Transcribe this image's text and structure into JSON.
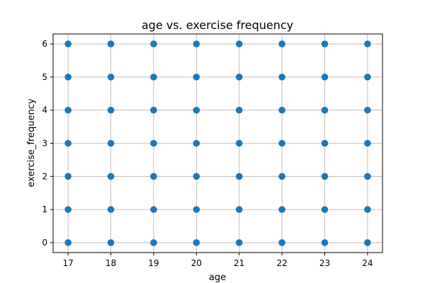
{
  "chart_data": {
    "type": "scatter",
    "title": "age vs. exercise frequency",
    "xlabel": "age",
    "ylabel": "exercise_frequency",
    "xlim": [
      16.65,
      24.35
    ],
    "ylim": [
      -0.3,
      6.3
    ],
    "x_ticks": [
      17,
      18,
      19,
      20,
      21,
      22,
      23,
      24
    ],
    "y_ticks": [
      0,
      1,
      2,
      3,
      4,
      5,
      6
    ],
    "grid": true,
    "marker_color": "#1f77b4",
    "points": [
      [
        17,
        0
      ],
      [
        17,
        1
      ],
      [
        17,
        2
      ],
      [
        17,
        3
      ],
      [
        17,
        4
      ],
      [
        17,
        5
      ],
      [
        17,
        6
      ],
      [
        18,
        0
      ],
      [
        18,
        1
      ],
      [
        18,
        2
      ],
      [
        18,
        3
      ],
      [
        18,
        4
      ],
      [
        18,
        5
      ],
      [
        18,
        6
      ],
      [
        19,
        0
      ],
      [
        19,
        1
      ],
      [
        19,
        2
      ],
      [
        19,
        3
      ],
      [
        19,
        4
      ],
      [
        19,
        5
      ],
      [
        19,
        6
      ],
      [
        20,
        0
      ],
      [
        20,
        1
      ],
      [
        20,
        2
      ],
      [
        20,
        3
      ],
      [
        20,
        4
      ],
      [
        20,
        5
      ],
      [
        20,
        6
      ],
      [
        21,
        0
      ],
      [
        21,
        1
      ],
      [
        21,
        2
      ],
      [
        21,
        3
      ],
      [
        21,
        4
      ],
      [
        21,
        5
      ],
      [
        21,
        6
      ],
      [
        22,
        0
      ],
      [
        22,
        1
      ],
      [
        22,
        2
      ],
      [
        22,
        3
      ],
      [
        22,
        4
      ],
      [
        22,
        5
      ],
      [
        22,
        6
      ],
      [
        23,
        0
      ],
      [
        23,
        1
      ],
      [
        23,
        2
      ],
      [
        23,
        3
      ],
      [
        23,
        4
      ],
      [
        23,
        5
      ],
      [
        23,
        6
      ],
      [
        24,
        0
      ],
      [
        24,
        1
      ],
      [
        24,
        2
      ],
      [
        24,
        3
      ],
      [
        24,
        4
      ],
      [
        24,
        5
      ],
      [
        24,
        6
      ]
    ]
  }
}
